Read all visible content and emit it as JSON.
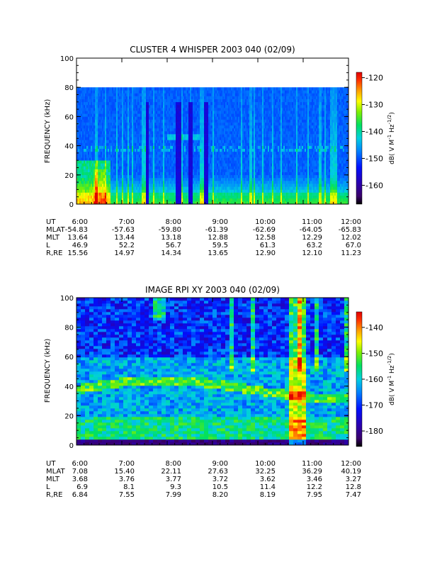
{
  "chart_data": [
    {
      "type": "heatmap",
      "title": "CLUSTER 4 WHISPER 2003 040 (02/09)",
      "ylabel": "FREQUENCY (kHz)",
      "ylim": [
        0,
        100
      ],
      "yticks": [
        "0",
        "20",
        "40",
        "60",
        "80",
        "100"
      ],
      "data_ylim": [
        0,
        80
      ],
      "colorbar": {
        "label": "dB( V M⁻¹ Hz⁻¹ᐟ²)",
        "label_parts": [
          "dB( V M",
          "-1",
          " Hz",
          "-1/2",
          ")"
        ],
        "range": [
          -167,
          -118
        ],
        "ticks": [
          "-120",
          "-130",
          "-140",
          "-150",
          "-160"
        ],
        "tick_values": [
          -120,
          -130,
          -140,
          -150,
          -160
        ]
      },
      "ephemeris": {
        "labels": [
          "UT",
          "MLAT",
          "MLT",
          "L",
          "R,RE"
        ],
        "columns": [
          [
            "6:00",
            "-54.83",
            "13.64",
            "46.9",
            "15.56"
          ],
          [
            "7:00",
            "-57.63",
            "13.44",
            "52.2",
            "14.97"
          ],
          [
            "8:00",
            "-59.80",
            "13.18",
            "56.7",
            "14.34"
          ],
          [
            "9:00",
            "-61.39",
            "12.88",
            "59.5",
            "13.65"
          ],
          [
            "10:00",
            "-62.69",
            "12.58",
            "61.3",
            "12.90"
          ],
          [
            "11:00",
            "-64.05",
            "12.29",
            "63.2",
            "12.10"
          ],
          [
            "12:00",
            "-65.83",
            "12.02",
            "67.0",
            "11.23"
          ]
        ]
      },
      "x": [
        "6:00",
        "7:00",
        "8:00",
        "9:00",
        "10:00",
        "11:00",
        "12:00"
      ]
    },
    {
      "type": "heatmap",
      "title": "IMAGE RPI XY 2003 040 (02/09)",
      "ylabel": "FREQUENCY (kHz)",
      "ylim": [
        0,
        100
      ],
      "yticks": [
        "0",
        "20",
        "40",
        "60",
        "80",
        "100"
      ],
      "data_ylim": [
        0,
        100
      ],
      "colorbar": {
        "label": "dB( V M⁻¹ Hz⁻¹ᐟ²)",
        "label_parts": [
          "dB( V M",
          "-1",
          " Hz",
          "-1/2",
          ")"
        ],
        "range": [
          -186,
          -134
        ],
        "ticks": [
          "-140",
          "-150",
          "-160",
          "-170",
          "-180"
        ],
        "tick_values": [
          -140,
          -150,
          -160,
          -170,
          -180
        ]
      },
      "ephemeris": {
        "labels": [
          "UT",
          "MLAT",
          "MLT",
          "L",
          "R,RE"
        ],
        "columns": [
          [
            "6:00",
            "7.08",
            "3.68",
            "6.9",
            "6.84"
          ],
          [
            "7:00",
            "15.40",
            "3.76",
            "8.1",
            "7.55"
          ],
          [
            "8:00",
            "22.11",
            "3.77",
            "9.3",
            "7.99"
          ],
          [
            "9:00",
            "27.63",
            "3.72",
            "10.5",
            "8.20"
          ],
          [
            "10:00",
            "32.25",
            "3.62",
            "11.4",
            "8.19"
          ],
          [
            "11:00",
            "36.29",
            "3.46",
            "12.2",
            "7.95"
          ],
          [
            "12:00",
            "40.19",
            "3.27",
            "12.8",
            "7.47"
          ]
        ]
      },
      "x": [
        "6:00",
        "7:00",
        "8:00",
        "9:00",
        "10:00",
        "11:00",
        "12:00"
      ]
    }
  ]
}
